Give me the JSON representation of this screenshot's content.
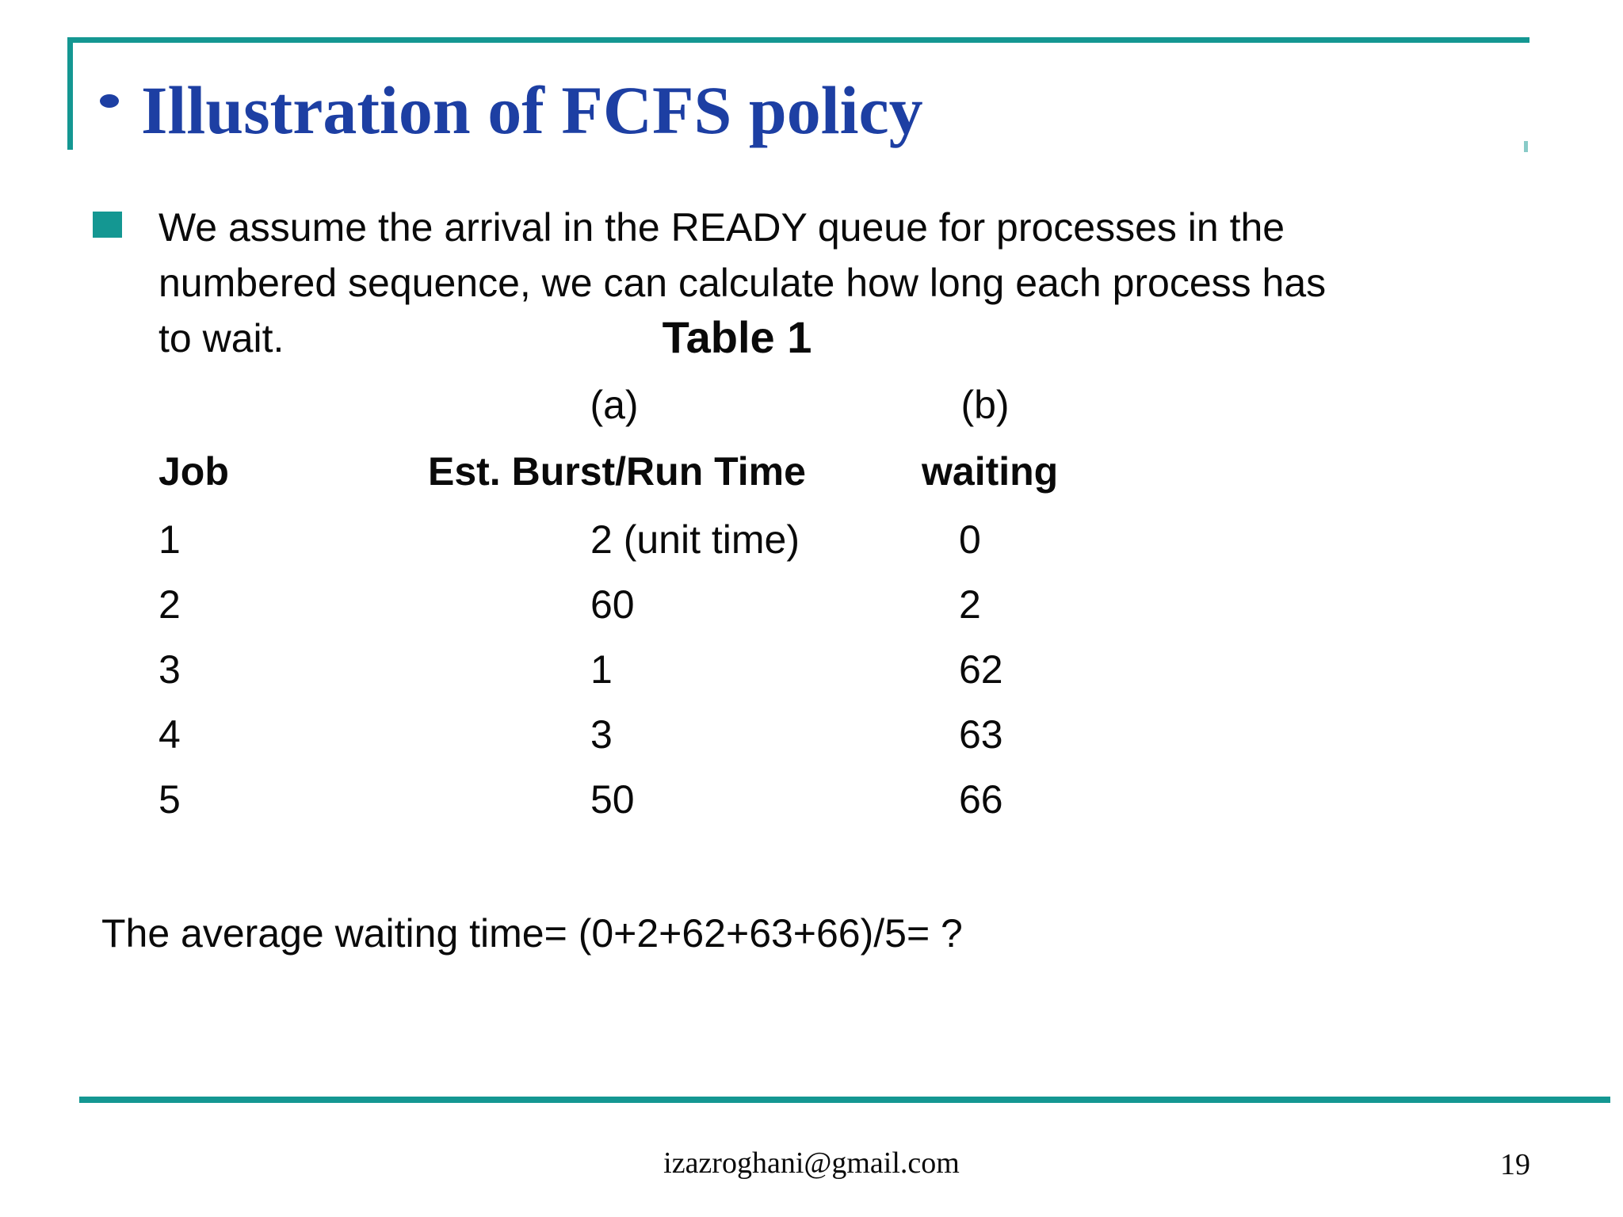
{
  "slide": {
    "title": "Illustration of FCFS policy",
    "bullet_lines": {
      "line1": "We assume the arrival in the READY queue for processes in the",
      "line2": "numbered sequence, we can calculate how long each process has",
      "line3": "to wait."
    },
    "table": {
      "caption": "Table 1",
      "group_labels": {
        "a": "(a)",
        "b": "(b)"
      },
      "headers": {
        "job": "Job",
        "burst": "Est. Burst/Run Time",
        "waiting": "waiting"
      },
      "rows": [
        {
          "job": "1",
          "burst": "2 (unit time)",
          "waiting": "0"
        },
        {
          "job": "2",
          "burst": "60",
          "waiting": "2"
        },
        {
          "job": "3",
          "burst": "1",
          "waiting": "62"
        },
        {
          "job": "4",
          "burst": "3",
          "waiting": "63"
        },
        {
          "job": "5",
          "burst": "50",
          "waiting": "66"
        }
      ]
    },
    "average_line": "The average waiting time= (0+2+62+63+66)/5= ?",
    "footer": {
      "email": "izazroghani@gmail.com",
      "page_number": "19"
    }
  },
  "colors": {
    "accent_teal": "#149792",
    "title_blue": "#1d3fa3",
    "text_ink": "#0a0a0a",
    "background": "#ffffff"
  }
}
